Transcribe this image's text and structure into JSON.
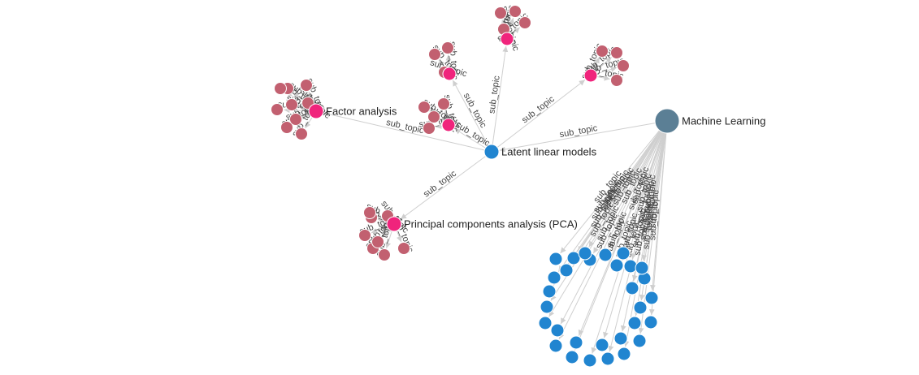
{
  "graph": {
    "edge_label": "sub_topic",
    "colors": {
      "root": "#5b7f95",
      "topic": "#2185d0",
      "subtopic": "#f0247c",
      "leaf": "#c26070",
      "edge": "#cfcfcf"
    },
    "nodes": {
      "root": {
        "label": "Machine Learning",
        "role": "root"
      },
      "latent": {
        "label": "Latent linear models",
        "role": "topic"
      },
      "factor": {
        "label": "Factor analysis",
        "role": "subtopic"
      },
      "pca": {
        "label": "Principal components analysis (PCA)",
        "role": "subtopic"
      },
      "s1": {
        "label": "",
        "role": "subtopic"
      },
      "s2": {
        "label": "",
        "role": "subtopic"
      },
      "s3": {
        "label": "",
        "role": "subtopic"
      },
      "s4": {
        "label": "",
        "role": "subtopic"
      }
    },
    "edges": [
      {
        "source": "root",
        "target": "latent",
        "label": "sub_topic"
      },
      {
        "source": "latent",
        "target": "factor",
        "label": "sub_topic"
      },
      {
        "source": "latent",
        "target": "pca",
        "label": "sub_topic"
      },
      {
        "source": "latent",
        "target": "s1",
        "label": "sub_topic"
      },
      {
        "source": "latent",
        "target": "s2",
        "label": "sub_topic"
      },
      {
        "source": "latent",
        "target": "s3",
        "label": "sub_topic"
      },
      {
        "source": "latent",
        "target": "s4",
        "label": "sub_topic"
      }
    ],
    "leaf_counts": {
      "factor": 9,
      "pca": 8,
      "s1": 3,
      "s2": 4,
      "s3": 4,
      "s4": 4,
      "root_children": 30
    }
  }
}
